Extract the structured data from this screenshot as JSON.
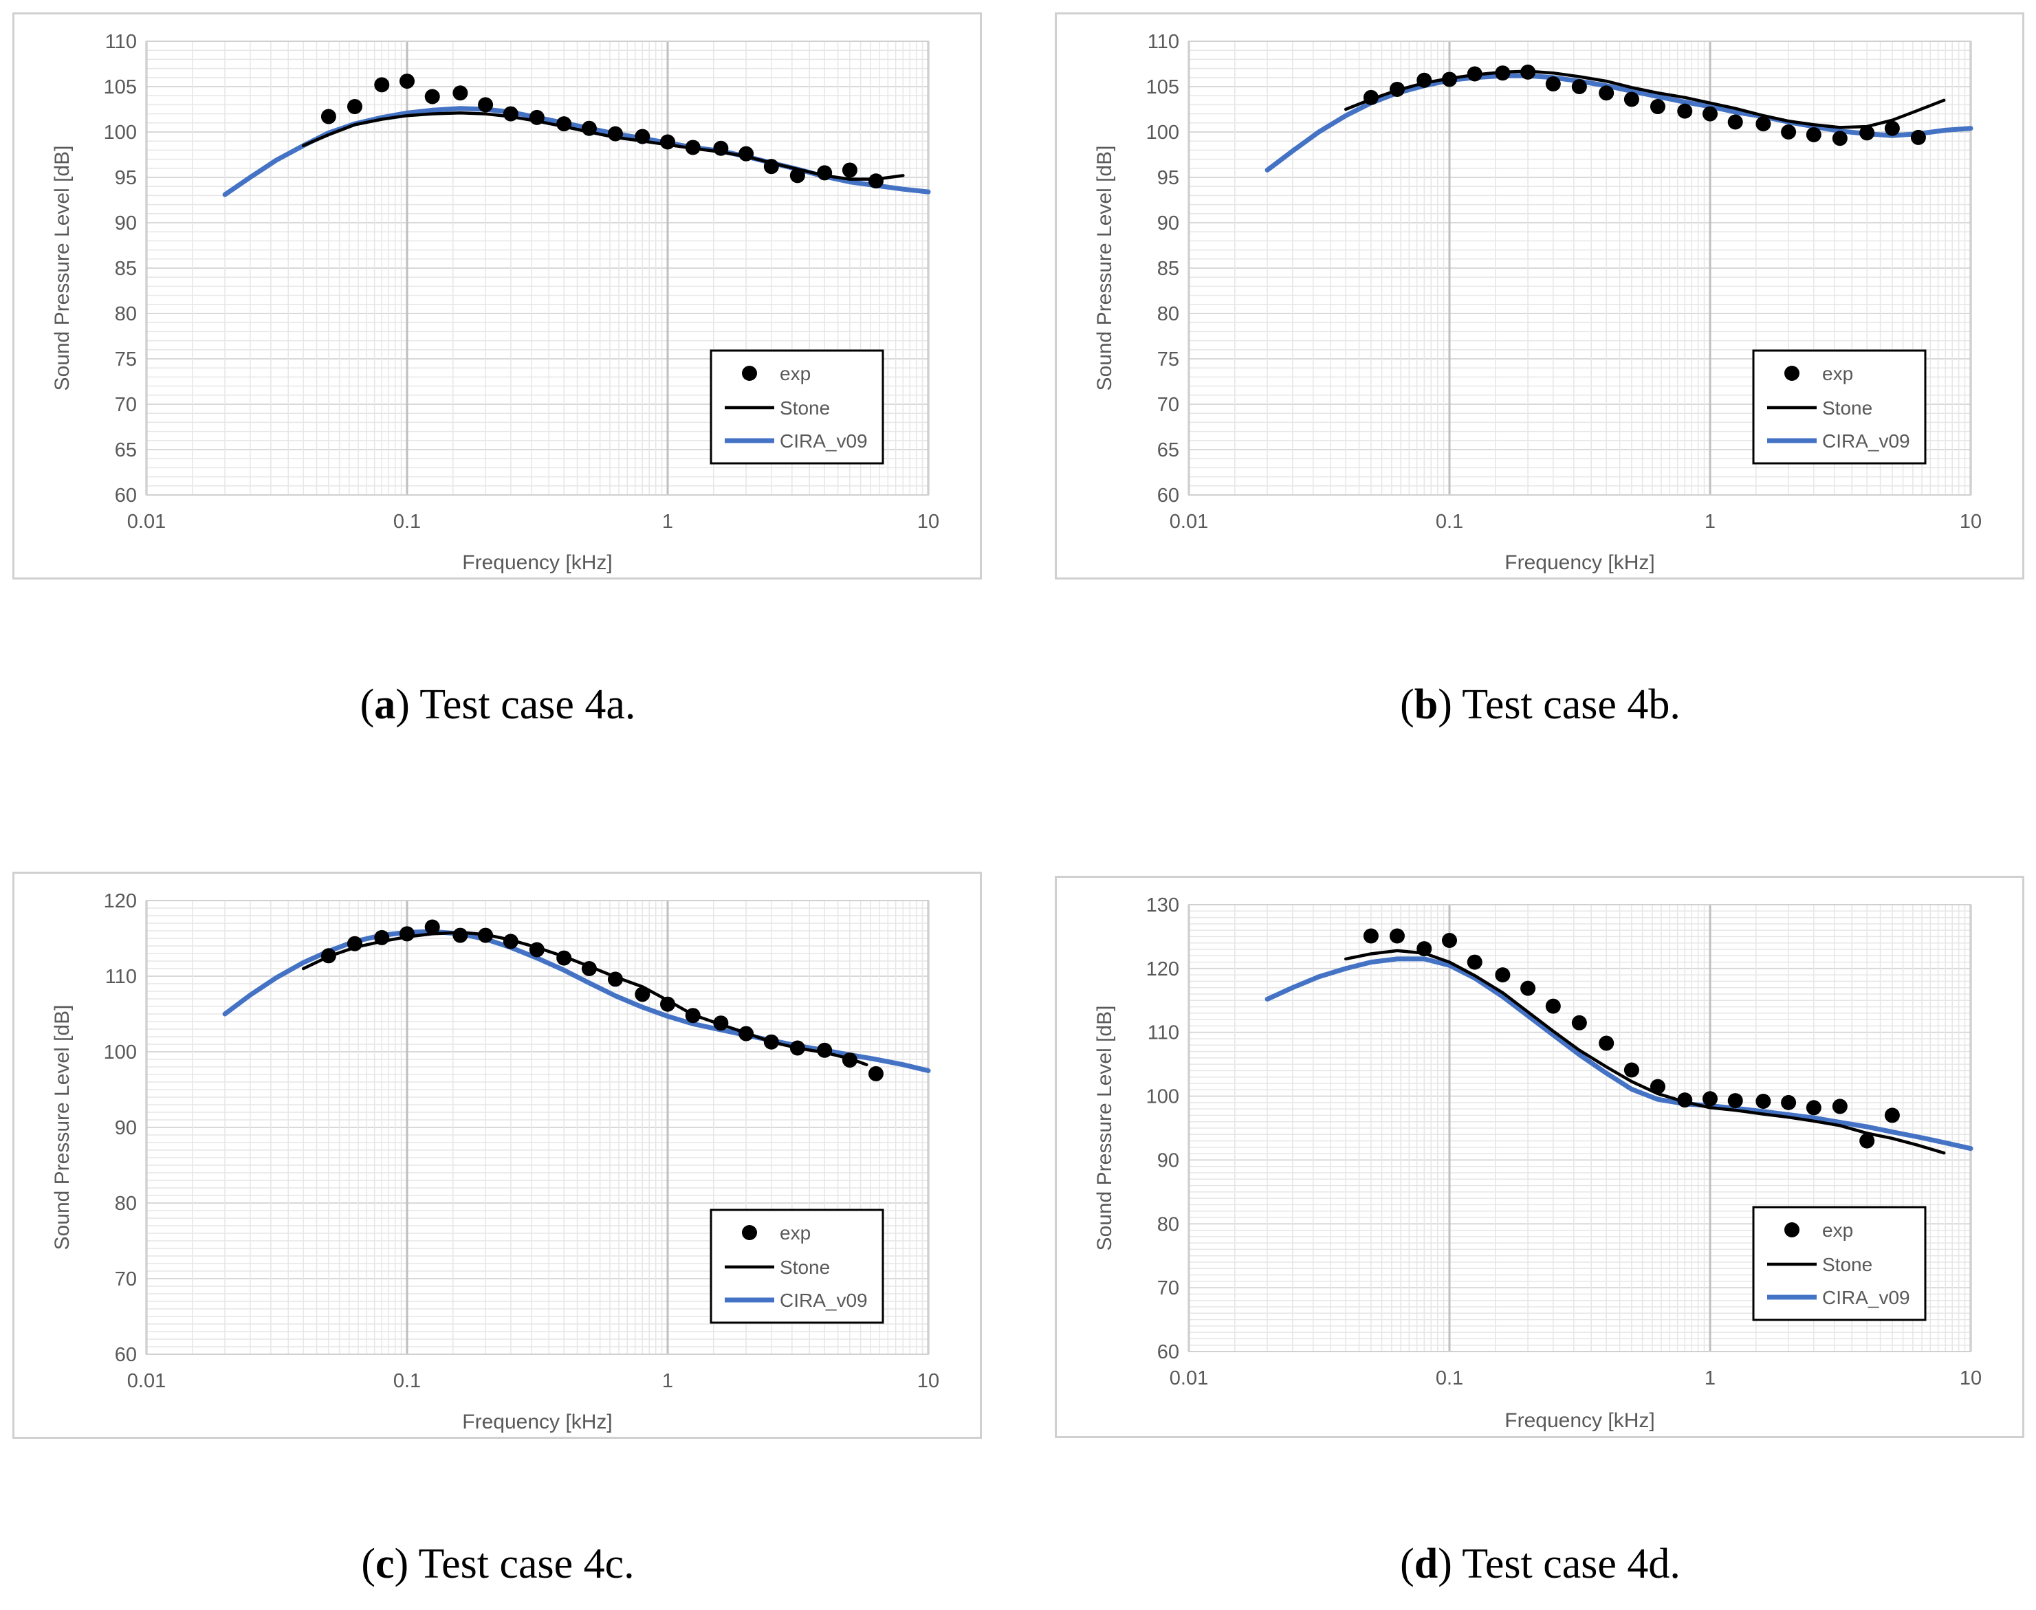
{
  "colors": {
    "exp": "#000000",
    "stone": "#000000",
    "cira": "#4472C4"
  },
  "legend_labels": {
    "exp": "exp",
    "stone": "Stone",
    "cira": "CIRA_v09"
  },
  "xlabel": "Frequency [kHz]",
  "ylabel": "Sound Pressure Level [dB]",
  "x_ticks": [
    "0.01",
    "0.1",
    "1",
    "10"
  ],
  "chart_data": [
    {
      "id": "a",
      "letter": "a",
      "caption": "Test case 4a.",
      "type": "scatter",
      "xscale": "log",
      "xlim": [
        0.01,
        10
      ],
      "ylim": [
        60,
        110
      ],
      "yticks": [
        60,
        65,
        70,
        75,
        80,
        85,
        90,
        95,
        100,
        105,
        110
      ],
      "xlabel": "Frequency [kHz]",
      "ylabel": "Sound Pressure Level [dB]",
      "legend_position": "bottom-right",
      "series": [
        {
          "name": "exp",
          "kind": "markers",
          "x": [
            0.05,
            0.063,
            0.08,
            0.1,
            0.125,
            0.16,
            0.2,
            0.25,
            0.315,
            0.4,
            0.5,
            0.63,
            0.8,
            1.0,
            1.25,
            1.6,
            2.0,
            2.5,
            3.15,
            4.0,
            5.0,
            6.3
          ],
          "y": [
            101.7,
            102.8,
            105.2,
            105.6,
            103.9,
            104.3,
            103.0,
            102.0,
            101.6,
            100.9,
            100.4,
            99.8,
            99.5,
            98.9,
            98.3,
            98.2,
            97.6,
            96.2,
            95.2,
            95.5,
            95.8,
            94.6
          ]
        },
        {
          "name": "Stone",
          "kind": "line",
          "x": [
            0.04,
            0.05,
            0.063,
            0.08,
            0.1,
            0.125,
            0.16,
            0.2,
            0.25,
            0.315,
            0.4,
            0.5,
            0.63,
            0.8,
            1.0,
            1.25,
            1.6,
            2.0,
            2.5,
            3.15,
            4.0,
            5.0,
            6.3,
            8.0
          ],
          "y": [
            98.5,
            99.7,
            100.8,
            101.4,
            101.8,
            102.0,
            102.1,
            102.0,
            101.7,
            101.2,
            100.6,
            100.0,
            99.4,
            99.0,
            98.6,
            98.2,
            97.8,
            97.3,
            96.6,
            95.9,
            95.2,
            94.8,
            94.8,
            95.2
          ]
        },
        {
          "name": "CIRA_v09",
          "kind": "line",
          "x": [
            0.02,
            0.025,
            0.0315,
            0.04,
            0.05,
            0.063,
            0.08,
            0.1,
            0.125,
            0.16,
            0.2,
            0.25,
            0.315,
            0.4,
            0.5,
            0.63,
            0.8,
            1.0,
            1.25,
            1.6,
            2.0,
            2.5,
            3.15,
            4.0,
            5.0,
            6.3,
            8.0,
            10.0
          ],
          "y": [
            93.1,
            95.0,
            96.9,
            98.5,
            99.9,
            100.9,
            101.6,
            102.1,
            102.4,
            102.6,
            102.5,
            102.2,
            101.6,
            101.0,
            100.4,
            99.8,
            99.3,
            98.8,
            98.3,
            97.9,
            97.3,
            96.6,
            95.9,
            95.1,
            94.5,
            94.1,
            93.7,
            93.4
          ]
        }
      ]
    },
    {
      "id": "b",
      "letter": "b",
      "caption": "Test case 4b.",
      "type": "scatter",
      "xscale": "log",
      "xlim": [
        0.01,
        10
      ],
      "ylim": [
        60,
        110
      ],
      "yticks": [
        60,
        65,
        70,
        75,
        80,
        85,
        90,
        95,
        100,
        105,
        110
      ],
      "xlabel": "Frequency [kHz]",
      "ylabel": "Sound Pressure Level [dB]",
      "legend_position": "bottom-right",
      "series": [
        {
          "name": "exp",
          "kind": "markers",
          "x": [
            0.05,
            0.063,
            0.08,
            0.1,
            0.125,
            0.16,
            0.2,
            0.25,
            0.315,
            0.4,
            0.5,
            0.63,
            0.8,
            1.0,
            1.25,
            1.6,
            2.0,
            2.5,
            3.15,
            4.0,
            5.0,
            6.3
          ],
          "y": [
            103.8,
            104.7,
            105.7,
            105.8,
            106.4,
            106.5,
            106.6,
            105.3,
            105.0,
            104.3,
            103.6,
            102.8,
            102.3,
            102.0,
            101.1,
            100.9,
            100.0,
            99.7,
            99.3,
            99.9,
            100.4,
            99.4
          ]
        },
        {
          "name": "Stone",
          "kind": "line",
          "x": [
            0.04,
            0.05,
            0.063,
            0.08,
            0.1,
            0.125,
            0.16,
            0.2,
            0.25,
            0.315,
            0.4,
            0.5,
            0.63,
            0.8,
            1.0,
            1.25,
            1.6,
            2.0,
            2.5,
            3.15,
            4.0,
            5.0,
            6.3,
            7.9
          ],
          "y": [
            102.5,
            103.6,
            104.6,
            105.4,
            105.9,
            106.3,
            106.6,
            106.7,
            106.5,
            106.1,
            105.6,
            104.9,
            104.3,
            103.8,
            103.2,
            102.6,
            101.8,
            101.2,
            100.8,
            100.5,
            100.6,
            101.3,
            102.4,
            103.5
          ]
        },
        {
          "name": "CIRA_v09",
          "kind": "line",
          "x": [
            0.02,
            0.025,
            0.0315,
            0.04,
            0.05,
            0.063,
            0.08,
            0.1,
            0.125,
            0.16,
            0.2,
            0.25,
            0.315,
            0.4,
            0.5,
            0.63,
            0.8,
            1.0,
            1.25,
            1.6,
            2.0,
            2.5,
            3.15,
            4.0,
            5.0,
            6.3,
            8.0,
            10.0
          ],
          "y": [
            95.8,
            97.9,
            100.0,
            101.8,
            103.2,
            104.3,
            105.1,
            105.7,
            106.0,
            106.2,
            106.2,
            106.0,
            105.6,
            105.1,
            104.5,
            103.9,
            103.3,
            102.8,
            102.2,
            101.7,
            101.1,
            100.6,
            100.1,
            99.8,
            99.6,
            99.8,
            100.2,
            100.4
          ]
        }
      ]
    },
    {
      "id": "c",
      "letter": "c",
      "caption": "Test case 4c.",
      "type": "scatter",
      "xscale": "log",
      "xlim": [
        0.01,
        10
      ],
      "ylim": [
        60,
        120
      ],
      "yticks": [
        60,
        70,
        80,
        90,
        100,
        110,
        120
      ],
      "xlabel": "Frequency [kHz]",
      "ylabel": "Sound Pressure Level [dB]",
      "legend_position": "bottom-right",
      "series": [
        {
          "name": "exp",
          "kind": "markers",
          "x": [
            0.05,
            0.063,
            0.08,
            0.1,
            0.125,
            0.16,
            0.2,
            0.25,
            0.315,
            0.4,
            0.5,
            0.63,
            0.8,
            1.0,
            1.25,
            1.6,
            2.0,
            2.5,
            3.15,
            4.0,
            5.0,
            6.3
          ],
          "y": [
            112.7,
            114.3,
            115.1,
            115.6,
            116.5,
            115.4,
            115.4,
            114.6,
            113.5,
            112.4,
            111.0,
            109.6,
            107.6,
            106.3,
            104.8,
            103.8,
            102.4,
            101.3,
            100.5,
            100.2,
            98.9,
            97.1
          ]
        },
        {
          "name": "Stone",
          "kind": "line",
          "x": [
            0.04,
            0.05,
            0.063,
            0.08,
            0.1,
            0.125,
            0.16,
            0.2,
            0.25,
            0.315,
            0.4,
            0.5,
            0.63,
            0.8,
            1.0,
            1.25,
            1.6,
            2.0,
            2.5,
            3.15,
            4.0,
            5.0,
            5.8
          ],
          "y": [
            111.0,
            112.6,
            113.8,
            114.6,
            115.2,
            115.6,
            115.8,
            115.5,
            114.8,
            113.8,
            112.6,
            111.3,
            109.9,
            108.6,
            106.8,
            104.9,
            103.6,
            102.5,
            101.3,
            100.5,
            99.9,
            99.1,
            98.3
          ]
        },
        {
          "name": "CIRA_v09",
          "kind": "line",
          "x": [
            0.02,
            0.025,
            0.0315,
            0.04,
            0.05,
            0.063,
            0.08,
            0.1,
            0.125,
            0.16,
            0.2,
            0.25,
            0.315,
            0.4,
            0.5,
            0.63,
            0.8,
            1.0,
            1.25,
            1.6,
            2.0,
            2.5,
            3.15,
            4.0,
            5.0,
            6.3,
            8.0,
            10.0
          ],
          "y": [
            105.0,
            107.5,
            109.8,
            111.8,
            113.3,
            114.6,
            115.4,
            115.8,
            115.9,
            115.6,
            114.9,
            113.8,
            112.4,
            110.8,
            109.1,
            107.4,
            105.9,
            104.7,
            103.7,
            102.9,
            102.2,
            101.5,
            100.8,
            100.2,
            99.6,
            99.0,
            98.3,
            97.5
          ]
        }
      ]
    },
    {
      "id": "d",
      "letter": "d",
      "caption": "Test case 4d.",
      "type": "scatter",
      "xscale": "log",
      "xlim": [
        0.01,
        10
      ],
      "ylim": [
        60,
        130
      ],
      "yticks": [
        60,
        70,
        80,
        90,
        100,
        110,
        120,
        130
      ],
      "xlabel": "Frequency [kHz]",
      "ylabel": "Sound Pressure Level [dB]",
      "legend_position": "bottom-right",
      "series": [
        {
          "name": "exp",
          "kind": "markers",
          "x": [
            0.05,
            0.063,
            0.08,
            0.1,
            0.125,
            0.16,
            0.2,
            0.25,
            0.315,
            0.4,
            0.5,
            0.63,
            0.8,
            1.0,
            1.25,
            1.6,
            2.0,
            2.5,
            3.15,
            4.0,
            5.0
          ],
          "y": [
            125.1,
            125.1,
            123.1,
            124.4,
            121.0,
            119.0,
            116.9,
            114.1,
            111.5,
            108.3,
            104.1,
            101.5,
            99.4,
            99.6,
            99.3,
            99.2,
            99.0,
            98.2,
            98.4,
            93.0,
            97.0
          ]
        },
        {
          "name": "Stone",
          "kind": "line",
          "x": [
            0.04,
            0.05,
            0.063,
            0.08,
            0.1,
            0.125,
            0.16,
            0.2,
            0.25,
            0.315,
            0.4,
            0.5,
            0.63,
            0.8,
            1.0,
            1.25,
            1.6,
            2.0,
            2.5,
            3.15,
            4.0,
            5.0,
            6.3,
            7.9
          ],
          "y": [
            121.5,
            122.3,
            122.8,
            122.4,
            121.0,
            118.9,
            116.2,
            113.2,
            110.2,
            107.2,
            104.6,
            102.3,
            100.4,
            99.1,
            98.2,
            97.8,
            97.2,
            96.7,
            96.1,
            95.4,
            94.2,
            93.4,
            92.3,
            91.1
          ]
        },
        {
          "name": "CIRA_v09",
          "kind": "line",
          "x": [
            0.02,
            0.025,
            0.0315,
            0.04,
            0.05,
            0.063,
            0.08,
            0.1,
            0.125,
            0.16,
            0.2,
            0.25,
            0.315,
            0.4,
            0.5,
            0.63,
            0.8,
            1.0,
            1.25,
            1.6,
            2.0,
            2.5,
            3.15,
            4.0,
            5.0,
            6.3,
            8.0,
            10.0
          ],
          "y": [
            115.2,
            117.0,
            118.7,
            120.0,
            121.0,
            121.5,
            121.5,
            120.5,
            118.5,
            115.6,
            112.6,
            109.6,
            106.5,
            103.6,
            101.1,
            99.5,
            98.8,
            98.5,
            98.1,
            97.6,
            97.1,
            96.6,
            95.9,
            95.2,
            94.4,
            93.6,
            92.7,
            91.8
          ]
        }
      ]
    }
  ]
}
